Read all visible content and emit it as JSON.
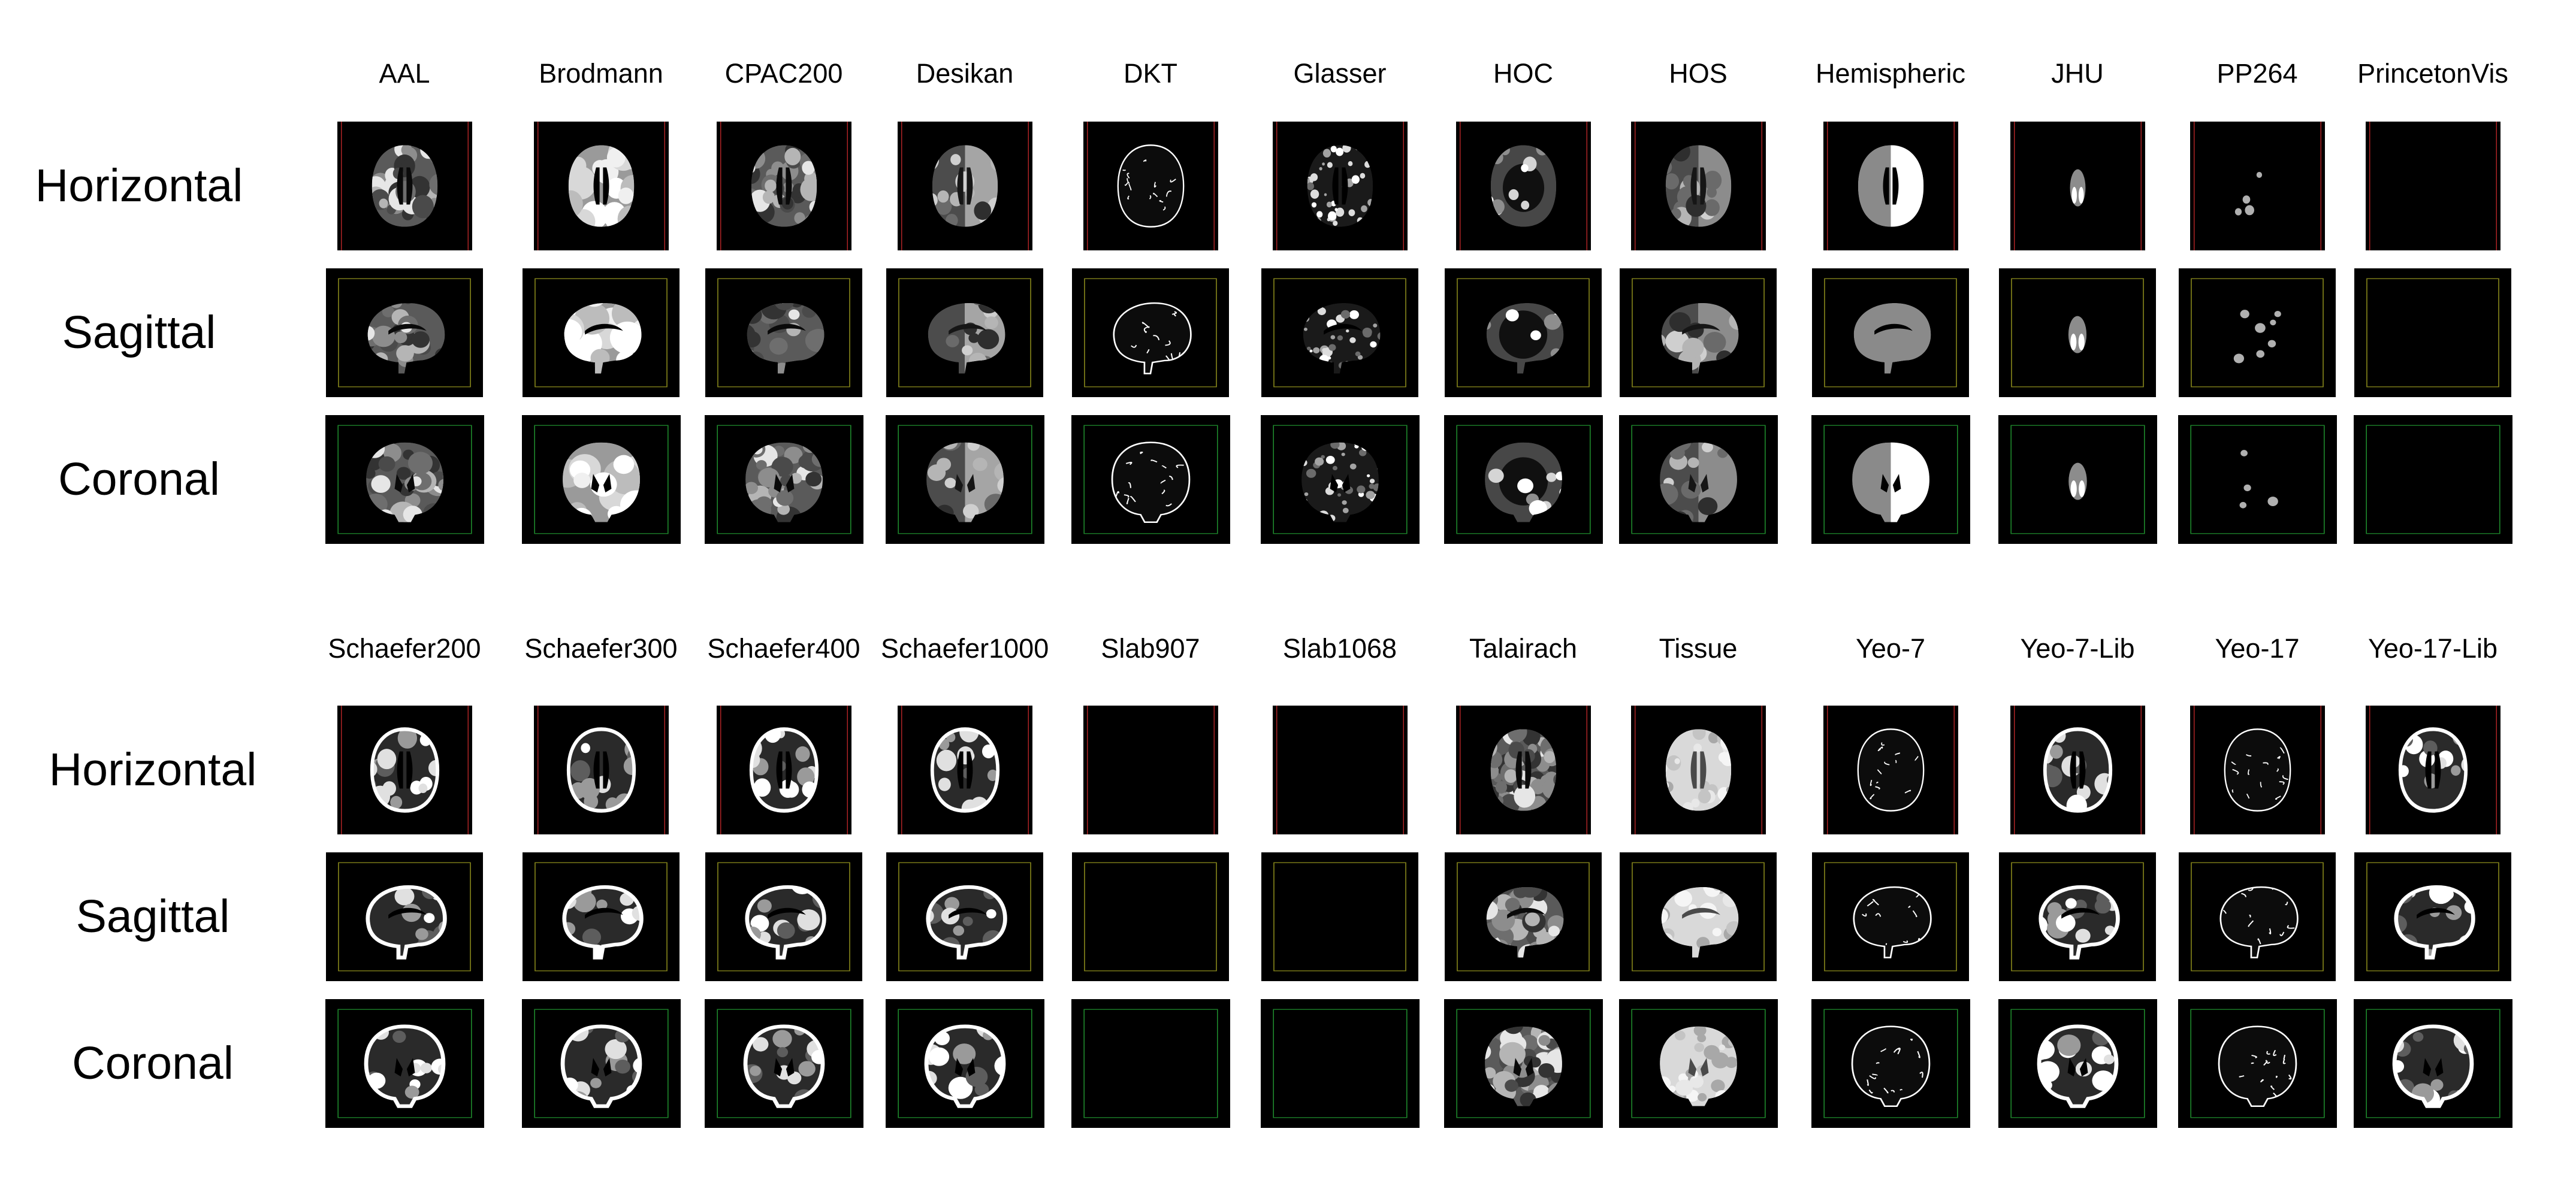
{
  "panels": [
    {
      "atlases": [
        "AAL",
        "Brodmann",
        "CPAC200",
        "Desikan",
        "DKT",
        "Glasser",
        "HOC",
        "HOS",
        "Hemispheric",
        "JHU",
        "PP264",
        "PrincetonVis"
      ],
      "views": [
        "Horizontal",
        "Sagittal",
        "Coronal"
      ]
    },
    {
      "atlases": [
        "Schaefer200",
        "Schaefer300",
        "Schaefer400",
        "Schaefer1000",
        "Slab907",
        "Slab1068",
        "Talairach",
        "Tissue",
        "Yeo-7",
        "Yeo-7-Lib",
        "Yeo-17",
        "Yeo-17-Lib"
      ],
      "views": [
        "Horizontal",
        "Sagittal",
        "Coronal"
      ]
    }
  ],
  "colors": {
    "background": "#ffffff",
    "tile": "#000000",
    "crosshair_horizontal": "#c0282a",
    "crosshair_sagittal": "#8a8a1c",
    "crosshair_coronal": "#1e8a2c"
  }
}
